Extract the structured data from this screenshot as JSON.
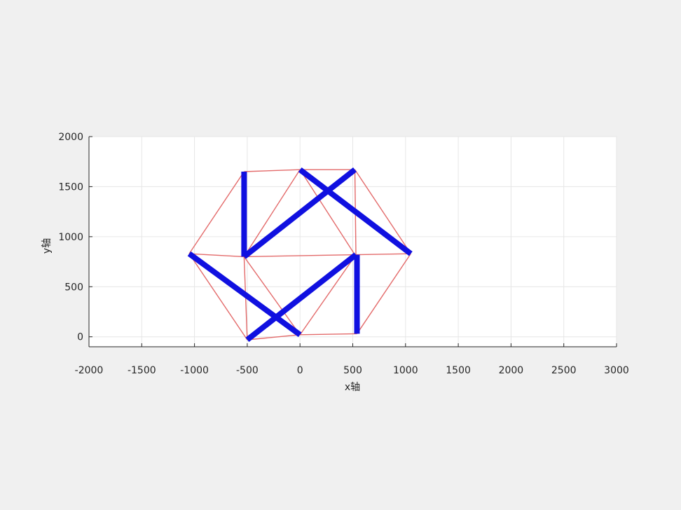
{
  "chart_data": {
    "type": "line",
    "xlabel": "x轴",
    "ylabel": "y轴",
    "xlim": [
      -2000,
      3000
    ],
    "ylim": [
      -100,
      2000
    ],
    "xticks": [
      -2000,
      -1500,
      -1000,
      -500,
      0,
      500,
      1000,
      1500,
      2000,
      2500,
      3000
    ],
    "yticks": [
      0,
      500,
      1000,
      1500,
      2000
    ],
    "xtick_labels": [
      "-2000",
      "-1500",
      "-1000",
      "-500",
      "0",
      "500",
      "1000",
      "1500",
      "2000",
      "2500",
      "3000"
    ],
    "ytick_labels": [
      "0",
      "500",
      "1000",
      "1500",
      "2000"
    ],
    "grid": true,
    "colors": {
      "thin": "#e05a5a",
      "thick": "#1010e0",
      "grid": "#e6e6e6",
      "axes_bg": "#ffffff",
      "figure_bg": "#f0f0f0"
    },
    "series": [
      {
        "style": "thin",
        "segments": [
          [
            [
              -530,
              1650
            ],
            [
              -1050,
              830
            ]
          ],
          [
            [
              -530,
              1650
            ],
            [
              0,
              1670
            ]
          ],
          [
            [
              0,
              1670
            ],
            [
              520,
              1670
            ]
          ],
          [
            [
              0,
              1670
            ],
            [
              -530,
              800
            ]
          ],
          [
            [
              0,
              1670
            ],
            [
              520,
              820
            ]
          ],
          [
            [
              520,
              1670
            ],
            [
              530,
              820
            ]
          ],
          [
            [
              520,
              1670
            ],
            [
              1050,
              830
            ]
          ],
          [
            [
              -1050,
              830
            ],
            [
              -530,
              800
            ]
          ],
          [
            [
              -530,
              800
            ],
            [
              530,
              820
            ]
          ],
          [
            [
              530,
              820
            ],
            [
              1050,
              830
            ]
          ],
          [
            [
              -1050,
              830
            ],
            [
              -500,
              -30
            ]
          ],
          [
            [
              -530,
              800
            ],
            [
              -500,
              -30
            ]
          ],
          [
            [
              -530,
              800
            ],
            [
              0,
              20
            ]
          ],
          [
            [
              0,
              20
            ],
            [
              530,
              820
            ]
          ],
          [
            [
              -500,
              -30
            ],
            [
              0,
              20
            ]
          ],
          [
            [
              0,
              20
            ],
            [
              540,
              30
            ]
          ],
          [
            [
              540,
              30
            ],
            [
              1050,
              830
            ]
          ]
        ]
      },
      {
        "style": "thick",
        "segments": [
          [
            [
              -530,
              1650
            ],
            [
              -530,
              800
            ]
          ],
          [
            [
              -530,
              800
            ],
            [
              520,
              1670
            ]
          ],
          [
            [
              0,
              1670
            ],
            [
              1050,
              830
            ]
          ],
          [
            [
              -1050,
              830
            ],
            [
              0,
              20
            ]
          ],
          [
            [
              -500,
              -30
            ],
            [
              530,
              820
            ]
          ],
          [
            [
              540,
              30
            ],
            [
              540,
              820
            ]
          ]
        ]
      }
    ]
  }
}
